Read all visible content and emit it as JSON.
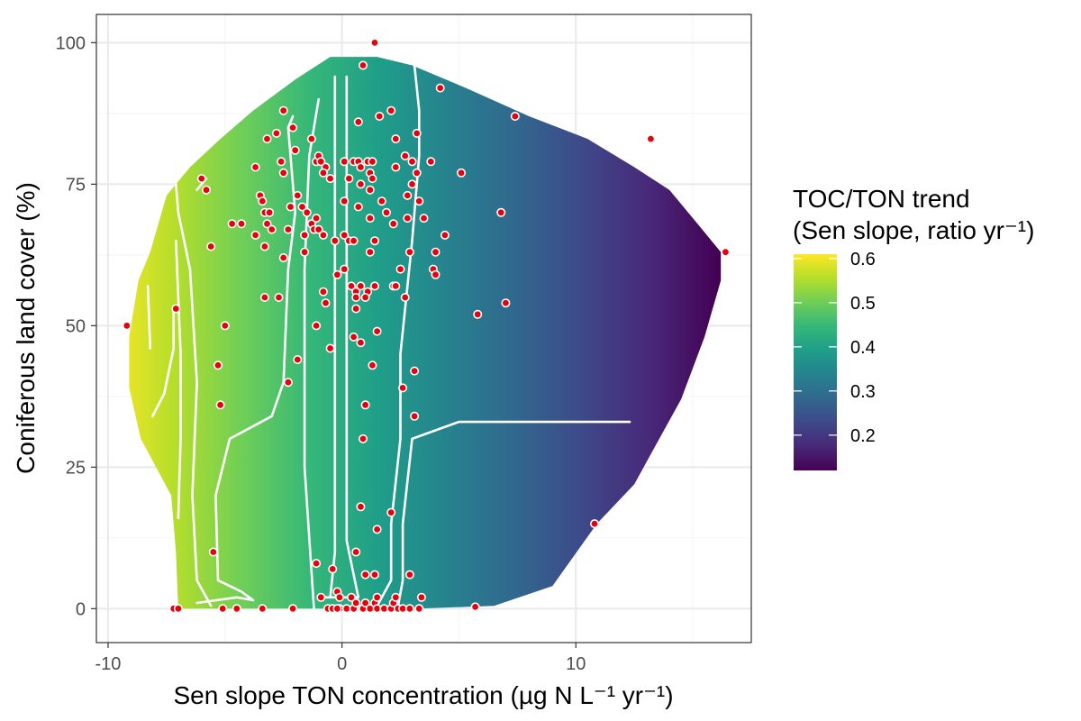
{
  "chart_data": {
    "type": "heatmap",
    "title": "",
    "xlabel": "Sen slope TON concentration (µg N L⁻¹ yr⁻¹)",
    "ylabel": "Coniferous land cover (%)",
    "xlim": [
      -10.5,
      17.5
    ],
    "ylim": [
      -6,
      105
    ],
    "x_ticks": [
      -10,
      0,
      10
    ],
    "x_tick_labels": [
      "-10",
      "0",
      "10"
    ],
    "y_ticks": [
      0,
      25,
      50,
      75,
      100
    ],
    "y_tick_labels": [
      "0",
      "25",
      "50",
      "75",
      "100"
    ],
    "grid": true,
    "legend_position": "right",
    "fill_legend": {
      "title_lines": [
        "TOC/TON trend",
        "(Sen slope, ratio yr⁻¹)"
      ],
      "limits": [
        0.12,
        0.61
      ],
      "breaks": [
        0.2,
        0.3,
        0.4,
        0.5,
        0.6
      ],
      "break_labels": [
        "0.2",
        "0.3",
        "0.4",
        "0.5",
        "0.6"
      ]
    },
    "colors": {
      "viridis": [
        "#440154",
        "#482878",
        "#3e4989",
        "#31688e",
        "#26828e",
        "#1f9e89",
        "#35b779",
        "#6ece58",
        "#b5de2b",
        "#fde725"
      ],
      "point_fill": "#e8000b",
      "point_stroke": "#ffffff",
      "contour": "#ffffff",
      "panel_border": "#333333",
      "grid_major": "#ebebeb",
      "grid_minor": "#f5f5f5"
    },
    "surface_outline": [
      [
        -7,
        0
      ],
      [
        3.3,
        0
      ],
      [
        6.5,
        0.5
      ],
      [
        9,
        4
      ],
      [
        10.9,
        15
      ],
      [
        12.5,
        22
      ],
      [
        13.3,
        28
      ],
      [
        14.5,
        37
      ],
      [
        15.5,
        48
      ],
      [
        16.2,
        58
      ],
      [
        16.2,
        63
      ],
      [
        15.2,
        68
      ],
      [
        14,
        74
      ],
      [
        12.5,
        78
      ],
      [
        10.5,
        83
      ],
      [
        8,
        87
      ],
      [
        5.3,
        92
      ],
      [
        3,
        96
      ],
      [
        1.5,
        97.5
      ],
      [
        -0.5,
        97.5
      ],
      [
        -2,
        93.5
      ],
      [
        -3.8,
        88
      ],
      [
        -5.2,
        83
      ],
      [
        -6.5,
        78
      ],
      [
        -7.5,
        73
      ],
      [
        -8.2,
        63
      ],
      [
        -8.7,
        58
      ],
      [
        -8.9,
        53
      ],
      [
        -9.1,
        48
      ],
      [
        -9.1,
        39
      ],
      [
        -8.6,
        30
      ],
      [
        -7.3,
        20
      ],
      [
        -7.1,
        10
      ]
    ],
    "contours": [
      [
        [
          -8.1,
          34
        ],
        [
          -7.6,
          38
        ],
        [
          -7.2,
          46
        ],
        [
          -7.2,
          53
        ]
      ],
      [
        [
          -8.2,
          46
        ],
        [
          -8.3,
          57
        ]
      ],
      [
        [
          -7,
          16
        ],
        [
          -6.9,
          30
        ],
        [
          -6.9,
          45
        ],
        [
          -7.1,
          65
        ]
      ],
      [
        [
          -5.6,
          0.5
        ],
        [
          -6.2,
          5
        ],
        [
          -6.4,
          20
        ],
        [
          -6.2,
          40
        ],
        [
          -6.5,
          60
        ],
        [
          -7,
          70
        ],
        [
          -7.1,
          75
        ]
      ],
      [
        [
          -5.8,
          76
        ],
        [
          -6.2,
          74
        ]
      ],
      [
        [
          -6.2,
          1
        ],
        [
          -4.5,
          2
        ],
        [
          -3.8,
          1.5
        ],
        [
          -4.3,
          3
        ],
        [
          -5.3,
          5
        ],
        [
          -5.4,
          20
        ],
        [
          -4.8,
          30
        ],
        [
          -3,
          34
        ],
        [
          -2.5,
          40
        ],
        [
          -2.3,
          60
        ],
        [
          -2,
          70
        ],
        [
          -2.3,
          85
        ],
        [
          -2.1,
          87
        ]
      ],
      [
        [
          -1.2,
          0
        ],
        [
          -1.6,
          25
        ],
        [
          -1.6,
          60
        ],
        [
          -1.4,
          80
        ],
        [
          -1,
          90
        ]
      ],
      [
        [
          -0.5,
          2
        ],
        [
          -0.3,
          10
        ],
        [
          -0.3,
          40
        ],
        [
          -0.3,
          94
        ]
      ],
      [
        [
          -0.8,
          2
        ],
        [
          0.7,
          2
        ],
        [
          0.2,
          12
        ],
        [
          0.2,
          40
        ],
        [
          0.2,
          94
        ]
      ],
      [
        [
          0.7,
          0.5
        ],
        [
          1.5,
          0.5
        ],
        [
          2.1,
          5
        ],
        [
          2.1,
          15
        ],
        [
          2.5,
          30
        ],
        [
          2.5,
          45
        ],
        [
          3,
          65
        ],
        [
          3.3,
          80
        ],
        [
          3.3,
          88
        ],
        [
          3.1,
          96
        ]
      ],
      [
        [
          2.4,
          0.5
        ],
        [
          2.6,
          5
        ],
        [
          2.6,
          15
        ],
        [
          3,
          30
        ],
        [
          5,
          33
        ],
        [
          12.3,
          33
        ]
      ]
    ],
    "series": [
      {
        "name": "",
        "points": [
          [
            -9.2,
            50
          ],
          [
            -7.1,
            53
          ],
          [
            -7.2,
            0
          ],
          [
            -7,
            0
          ],
          [
            -6,
            76
          ],
          [
            -5.8,
            74
          ],
          [
            -5.6,
            64
          ],
          [
            -5.5,
            10
          ],
          [
            -5.3,
            43
          ],
          [
            -5.2,
            36
          ],
          [
            -5,
            50
          ],
          [
            -5.1,
            0
          ],
          [
            -4.5,
            0
          ],
          [
            -4.7,
            68
          ],
          [
            -4.3,
            68
          ],
          [
            -3.7,
            78
          ],
          [
            -3.7,
            66
          ],
          [
            -3.5,
            73
          ],
          [
            -3.4,
            72
          ],
          [
            -3.3,
            64
          ],
          [
            -3.3,
            70
          ],
          [
            -3.3,
            55
          ],
          [
            -3.2,
            83
          ],
          [
            -3.1,
            70
          ],
          [
            -3.2,
            68
          ],
          [
            -3.4,
            0
          ],
          [
            -3,
            67
          ],
          [
            -2.8,
            84
          ],
          [
            -2.7,
            55
          ],
          [
            -2.6,
            79
          ],
          [
            -2.5,
            88
          ],
          [
            -2.5,
            62
          ],
          [
            -2.3,
            40
          ],
          [
            -2.5,
            77
          ],
          [
            -2.2,
            71
          ],
          [
            -2.3,
            67
          ],
          [
            -2.1,
            85
          ],
          [
            -2,
            81
          ],
          [
            -1.9,
            73
          ],
          [
            -1.9,
            44
          ],
          [
            -2.1,
            0
          ],
          [
            -1.7,
            71
          ],
          [
            -1.6,
            66
          ],
          [
            -1.6,
            63
          ],
          [
            -1.5,
            70
          ],
          [
            -1.3,
            83
          ],
          [
            -1.3,
            68
          ],
          [
            -1.1,
            79
          ],
          [
            -1.1,
            69
          ],
          [
            -1.2,
            67
          ],
          [
            -1,
            80
          ],
          [
            -1,
            67
          ],
          [
            -1.1,
            50
          ],
          [
            -1.1,
            8
          ],
          [
            -0.9,
            79
          ],
          [
            -0.7,
            78
          ],
          [
            -0.8,
            77
          ],
          [
            -0.8,
            56
          ],
          [
            -0.7,
            54
          ],
          [
            -0.8,
            66
          ],
          [
            -0.9,
            2
          ],
          [
            -0.6,
            0
          ],
          [
            -0.5,
            76
          ],
          [
            -0.5,
            46
          ],
          [
            -0.4,
            7
          ],
          [
            -0.4,
            0
          ],
          [
            -0.3,
            65
          ],
          [
            -0.2,
            59
          ],
          [
            -0.2,
            3
          ],
          [
            -0.1,
            2
          ],
          [
            -0.1,
            0
          ],
          [
            -0.2,
            0
          ],
          [
            0.1,
            79
          ],
          [
            0.1,
            72
          ],
          [
            0.1,
            66
          ],
          [
            0.1,
            60
          ],
          [
            0.2,
            0
          ],
          [
            0.3,
            76
          ],
          [
            0.4,
            57
          ],
          [
            0.3,
            65
          ],
          [
            0.4,
            2
          ],
          [
            0.5,
            0
          ],
          [
            0.5,
            79
          ],
          [
            0.5,
            65
          ],
          [
            0.6,
            56
          ],
          [
            0.6,
            53
          ],
          [
            0.6,
            55
          ],
          [
            0.5,
            48
          ],
          [
            0.6,
            10
          ],
          [
            0.6,
            1
          ],
          [
            0.7,
            86
          ],
          [
            0.7,
            79
          ],
          [
            0.7,
            71
          ],
          [
            0.8,
            78
          ],
          [
            0.8,
            75
          ],
          [
            0.8,
            57
          ],
          [
            0.8,
            47
          ],
          [
            0.8,
            18
          ],
          [
            0.9,
            96
          ],
          [
            0.9,
            30
          ],
          [
            0.9,
            0
          ],
          [
            1.1,
            79
          ],
          [
            1.1,
            56
          ],
          [
            1,
            55
          ],
          [
            1,
            36
          ],
          [
            1,
            6
          ],
          [
            1,
            1
          ],
          [
            1.2,
            77
          ],
          [
            1.2,
            74
          ],
          [
            1.2,
            69
          ],
          [
            1.2,
            63
          ],
          [
            1.2,
            0
          ],
          [
            1.3,
            79
          ],
          [
            1.3,
            76
          ],
          [
            1.3,
            43
          ],
          [
            1.4,
            6
          ],
          [
            1.4,
            1
          ],
          [
            1.4,
            100
          ],
          [
            1.4,
            65
          ],
          [
            1.4,
            57
          ],
          [
            1.5,
            14
          ],
          [
            1.5,
            0
          ],
          [
            1.5,
            49
          ],
          [
            1.5,
            2
          ],
          [
            1.6,
            87
          ],
          [
            1.7,
            72
          ],
          [
            1.8,
            0
          ],
          [
            1.9,
            70
          ],
          [
            2.1,
            88
          ],
          [
            2.1,
            17
          ],
          [
            2.1,
            0
          ],
          [
            2.2,
            68
          ],
          [
            2.2,
            57
          ],
          [
            2.2,
            1
          ],
          [
            2.3,
            83
          ],
          [
            2.3,
            78
          ],
          [
            2.3,
            57
          ],
          [
            2.3,
            2
          ],
          [
            2.4,
            0
          ],
          [
            2.5,
            60
          ],
          [
            2.6,
            39
          ],
          [
            2.6,
            0
          ],
          [
            2.7,
            55
          ],
          [
            2.7,
            80
          ],
          [
            2.8,
            69
          ],
          [
            2.8,
            73
          ],
          [
            2.9,
            63
          ],
          [
            2.9,
            6
          ],
          [
            2.9,
            0
          ],
          [
            3,
            79
          ],
          [
            3,
            75
          ],
          [
            3.1,
            42
          ],
          [
            3.1,
            34
          ],
          [
            3.2,
            84
          ],
          [
            3.2,
            77
          ],
          [
            3.3,
            72
          ],
          [
            3.3,
            0
          ],
          [
            3.4,
            2
          ],
          [
            3.5,
            69
          ],
          [
            3.8,
            79
          ],
          [
            3.9,
            60
          ],
          [
            4,
            59
          ],
          [
            4,
            63
          ],
          [
            4.2,
            92
          ],
          [
            4.4,
            66
          ],
          [
            5.1,
            77
          ],
          [
            5.7,
            0.3
          ],
          [
            5.8,
            52
          ],
          [
            6.8,
            70
          ],
          [
            7,
            54
          ],
          [
            7.4,
            87
          ],
          [
            10.8,
            15
          ],
          [
            13.2,
            83
          ],
          [
            16.4,
            63
          ]
        ]
      }
    ]
  }
}
